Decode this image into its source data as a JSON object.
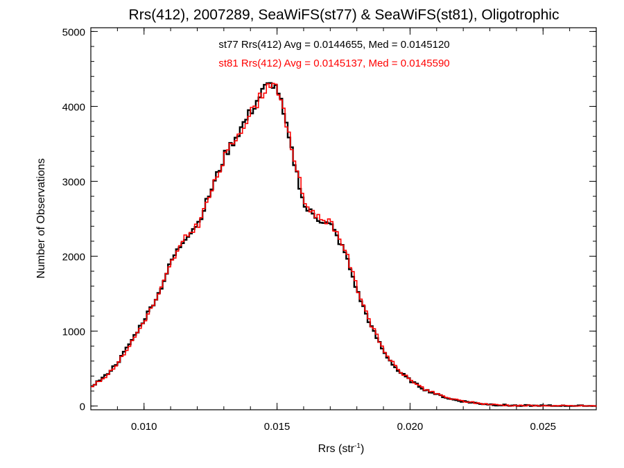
{
  "chart_data": {
    "type": "line",
    "title": "Rrs(412), 2007289, SeaWiFS(st77) & SeaWiFS(st81), Oligotrophic",
    "xlabel_main": "Rrs (str",
    "xlabel_sup": "-1",
    "xlabel_close": ")",
    "ylabel": "Number of Observations",
    "xlim": [
      0.008,
      0.027
    ],
    "ylim": [
      -50,
      5050
    ],
    "x_ticks": [
      0.01,
      0.015,
      0.02,
      0.025
    ],
    "x_tick_labels": [
      "0.010",
      "0.015",
      "0.020",
      "0.025"
    ],
    "y_ticks": [
      0,
      1000,
      2000,
      3000,
      4000,
      5000
    ],
    "y_tick_labels": [
      "0",
      "1000",
      "2000",
      "3000",
      "4000",
      "5000"
    ],
    "grid": false,
    "legend": "top-center",
    "annotations": [
      "st77 Rrs(412) Avg = 0.0144655, Med = 0.0145120",
      "st81 Rrs(412) Avg = 0.0145137, Med = 0.0145590"
    ],
    "series": [
      {
        "color": "#000000",
        "x": [
          0.008,
          0.0085,
          0.009,
          0.0095,
          0.01,
          0.0105,
          0.011,
          0.0115,
          0.012,
          0.0125,
          0.013,
          0.0135,
          0.014,
          0.0145,
          0.0148,
          0.015,
          0.0155,
          0.016,
          0.0165,
          0.017,
          0.0175,
          0.018,
          0.0185,
          0.019,
          0.0195,
          0.02,
          0.0205,
          0.021,
          0.0215,
          0.022,
          0.0225,
          0.023,
          0.0235,
          0.024,
          0.0245,
          0.025,
          0.0255,
          0.026,
          0.0265,
          0.027
        ],
        "y": [
          270,
          400,
          600,
          880,
          1180,
          1500,
          1950,
          2250,
          2450,
          2900,
          3350,
          3650,
          3950,
          4250,
          4300,
          4200,
          3400,
          2650,
          2500,
          2400,
          2050,
          1500,
          1050,
          700,
          470,
          330,
          220,
          150,
          90,
          60,
          35,
          20,
          10,
          5,
          3,
          2,
          1,
          1,
          0,
          0
        ]
      },
      {
        "color": "#ff0000",
        "x": [
          0.008,
          0.0085,
          0.009,
          0.0095,
          0.01,
          0.0105,
          0.011,
          0.0115,
          0.012,
          0.0125,
          0.013,
          0.0135,
          0.014,
          0.0145,
          0.0148,
          0.015,
          0.0155,
          0.016,
          0.0165,
          0.017,
          0.0175,
          0.018,
          0.0185,
          0.019,
          0.0195,
          0.02,
          0.0205,
          0.021,
          0.0215,
          0.022,
          0.0225,
          0.023,
          0.0235,
          0.024,
          0.0245,
          0.025,
          0.0255,
          0.026,
          0.0265,
          0.027
        ],
        "y": [
          260,
          390,
          590,
          860,
          1160,
          1480,
          1930,
          2240,
          2430,
          2880,
          3330,
          3640,
          3930,
          4230,
          4350,
          4220,
          3450,
          2700,
          2520,
          2450,
          2100,
          1540,
          1080,
          720,
          480,
          340,
          225,
          155,
          95,
          62,
          37,
          21,
          11,
          5,
          3,
          2,
          1,
          1,
          0,
          0
        ]
      }
    ]
  },
  "colors": {
    "series_st77": "#000000",
    "series_st81": "#ff0000",
    "axes": "#000000",
    "background": "#ffffff"
  }
}
